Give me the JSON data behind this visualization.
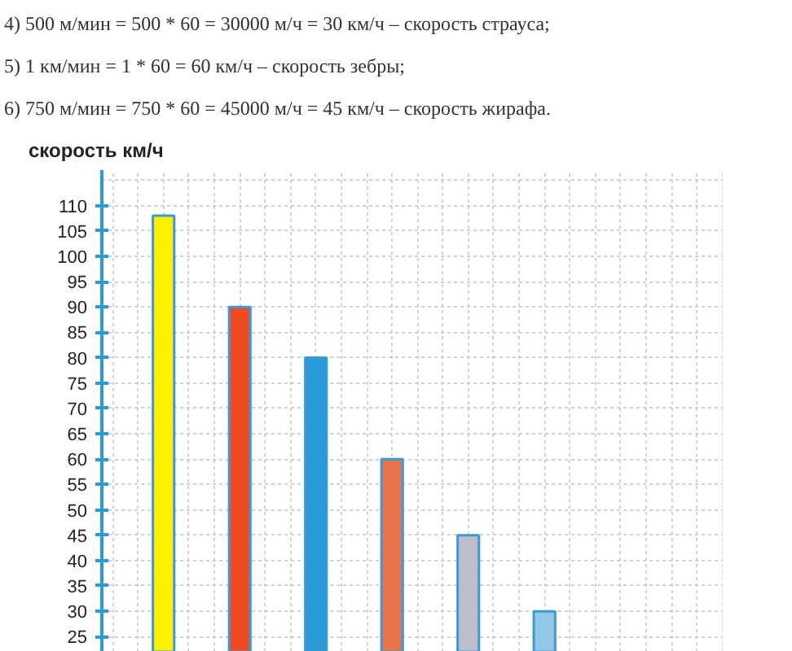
{
  "chart_data": {
    "type": "bar",
    "annotations": [
      "4) 500 м/мин = 500 * 60 = 30000 м/ч = 30 км/ч – скорость страуса;",
      "5) 1 км/мин = 1 * 60 = 60 км/ч – скорость зебры;",
      "6) 750 м/мин = 750 * 60 = 45000 м/ч = 45 км/ч – скорость жирафа."
    ],
    "ylabel": "скорость км/ч",
    "categories": [
      null,
      null,
      null,
      null,
      null,
      null,
      null,
      null
    ],
    "values": [
      108,
      90,
      80,
      60,
      45,
      30,
      null,
      null
    ],
    "colors": [
      "#fff000",
      "#f04a23",
      "#2a9ad8",
      "#e8744a",
      "#bebecb",
      "#94c7e6",
      "#94c7e6",
      "#94c7e6"
    ],
    "ylim": [
      22,
      117
    ],
    "yticks": [
      25,
      30,
      35,
      40,
      45,
      50,
      55,
      60,
      65,
      70,
      75,
      80,
      85,
      90,
      95,
      100,
      105,
      110
    ],
    "grid": true
  }
}
